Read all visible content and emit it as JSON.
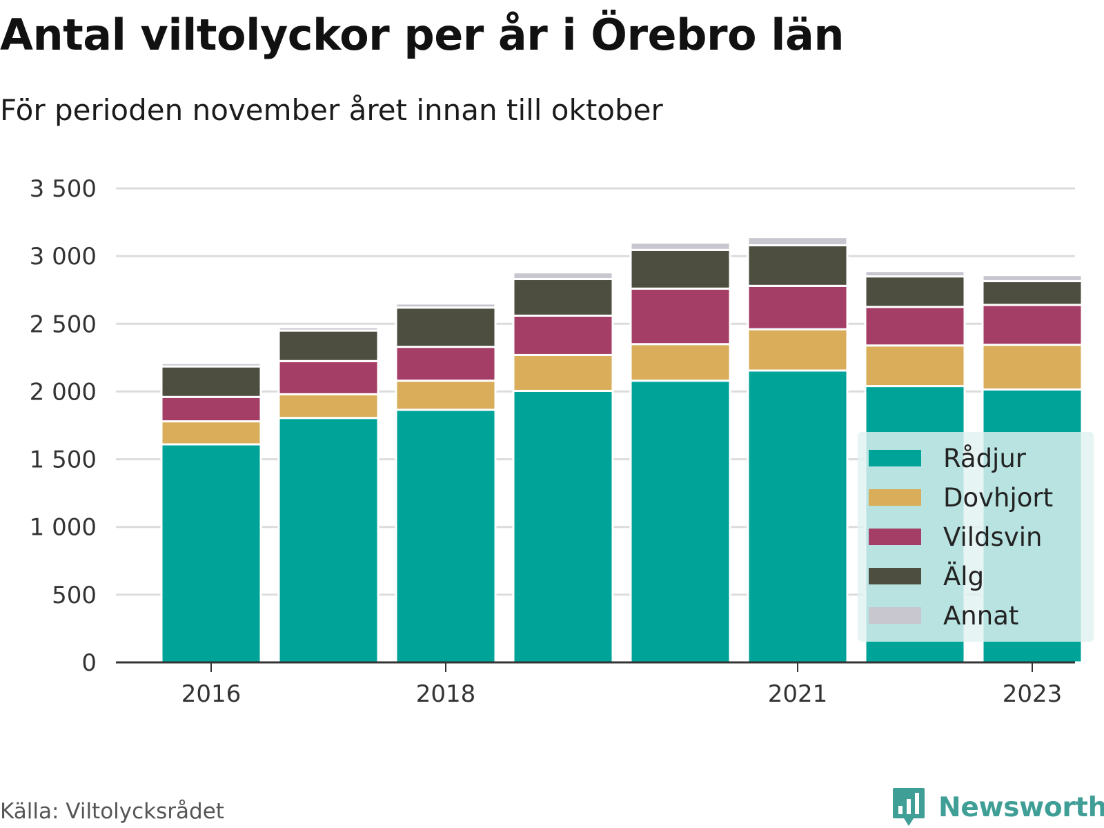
{
  "header": {
    "title": "Antal viltolyckor per år i Örebro län",
    "subtitle": "För perioden november året innan till oktober"
  },
  "footer": {
    "source": "Källa: Viltolycksrådet",
    "brand": "Newsworthy",
    "brand_icon": "bar-chart-speech-bubble-icon",
    "brand_color": "#3f9e96"
  },
  "chart_data": {
    "type": "bar",
    "stacked": true,
    "title": "Antal viltolyckor per år i Örebro län",
    "subtitle": "För perioden november året innan till oktober",
    "xlabel": "",
    "ylabel": "",
    "categories": [
      "2016",
      "2017",
      "2018",
      "2019",
      "2020",
      "2021",
      "2022",
      "2023"
    ],
    "x_tick_labels": [
      "2016",
      "",
      "2018",
      "",
      "",
      "2021",
      "",
      "2023"
    ],
    "y_ticks": [
      0,
      500,
      1000,
      1500,
      2000,
      2500,
      3000,
      3500
    ],
    "y_tick_labels": [
      "0",
      "500",
      "1 000",
      "1 500",
      "2 000",
      "2 500",
      "3 000",
      "3 500"
    ],
    "ylim": [
      0,
      3500
    ],
    "grid": true,
    "legend_position": "bottom-right",
    "series": [
      {
        "name": "Rådjur",
        "color": "#00a398",
        "values": [
          1610,
          1805,
          1865,
          2005,
          2080,
          2155,
          2040,
          2015
        ]
      },
      {
        "name": "Dovhjort",
        "color": "#d9ad5a",
        "values": [
          170,
          175,
          215,
          265,
          270,
          305,
          300,
          330
        ]
      },
      {
        "name": "Vildsvin",
        "color": "#a43e66",
        "values": [
          180,
          245,
          250,
          290,
          410,
          320,
          285,
          295
        ]
      },
      {
        "name": "Älg",
        "color": "#4d4e40",
        "values": [
          225,
          225,
          290,
          270,
          285,
          300,
          225,
          175
        ]
      },
      {
        "name": "Annat",
        "color": "#c8c6ce",
        "values": [
          25,
          25,
          30,
          50,
          55,
          60,
          40,
          45
        ]
      }
    ]
  }
}
